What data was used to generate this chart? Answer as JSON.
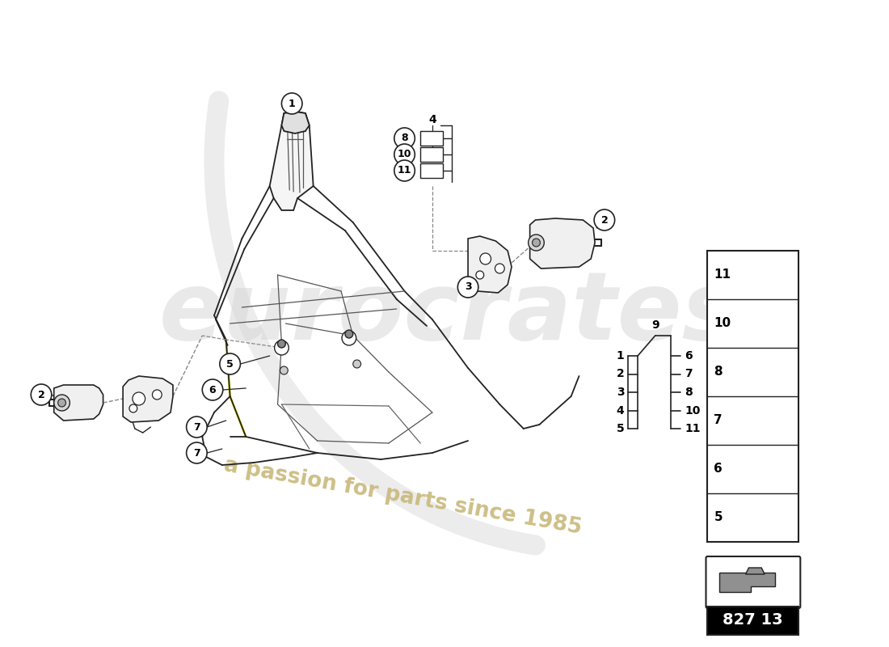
{
  "bg_color": "#ffffff",
  "watermark_text": "a passion for parts since 1985",
  "watermark_color": "#c8b87a",
  "eurocrates_color": "#d0d0d0",
  "part_number": "827 13",
  "bom_left": [
    "1",
    "2",
    "3",
    "4",
    "5"
  ],
  "bom_right": [
    "6",
    "7",
    "8",
    "10",
    "11"
  ],
  "bom_center": "9",
  "legend_nums": [
    "11",
    "10",
    "8",
    "7",
    "6",
    "5"
  ],
  "line_color": "#222222",
  "dashed_color": "#888888",
  "yellow_color": "#e8e000",
  "frame_bg": "#f8f8f8"
}
